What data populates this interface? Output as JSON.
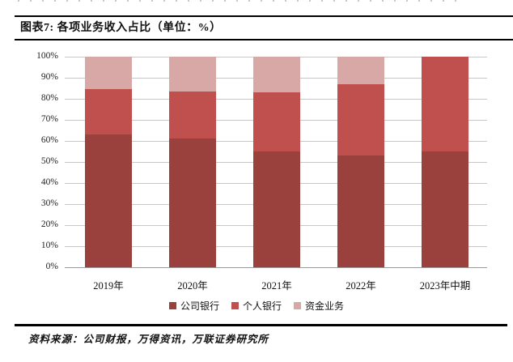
{
  "figure": {
    "title": "图表7: 各项业务收入占比（单位：%）",
    "source": "资料来源：公司财报，万得资讯，万联证券研究所"
  },
  "chart_data": {
    "type": "bar",
    "stacked": true,
    "title": "各项业务收入占比",
    "unit": "%",
    "categories": [
      "2019年",
      "2020年",
      "2021年",
      "2022年",
      "2023年中期"
    ],
    "series": [
      {
        "name": "公司银行",
        "color": "#9A403D",
        "values": [
          63,
          61,
          55,
          53,
          55
        ]
      },
      {
        "name": "个人银行",
        "color": "#C0504D",
        "values": [
          21.5,
          22.5,
          28,
          34,
          45
        ]
      },
      {
        "name": "资金业务",
        "color": "#D8A8A7",
        "values": [
          15.5,
          16.5,
          17,
          13,
          0
        ]
      }
    ],
    "ylim": [
      0,
      100
    ],
    "ytick_step": 10,
    "ytick_suffix": "%",
    "grid": true,
    "legend_position": "bottom",
    "colors": {
      "gridline": "#c7c7c7",
      "axis_line": "#9b9b9b"
    }
  }
}
